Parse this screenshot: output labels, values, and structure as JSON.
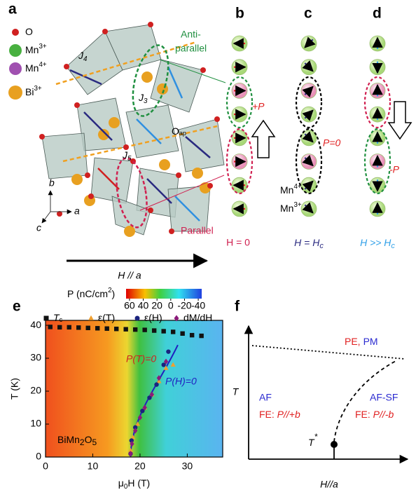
{
  "panel_a": {
    "label": "a",
    "legend": [
      {
        "base": "O"
      },
      {
        "base": "Mn",
        "sup": "3+"
      },
      {
        "base": "Mn",
        "sup": "4+"
      },
      {
        "base": "Bi",
        "sup": "3+"
      }
    ],
    "exchange": [
      {
        "base": "J",
        "sub": "4"
      },
      {
        "base": "J",
        "sub": "3"
      },
      {
        "base": "J",
        "sub": "5"
      }
    ],
    "apical": {
      "base": "O",
      "sub": "ap"
    },
    "antiparallel": [
      "Anti-",
      "parallel"
    ],
    "parallel": "Parallel",
    "axes": [
      "b",
      "a",
      "c"
    ],
    "field": "H // a"
  },
  "panel_b": {
    "label": "b",
    "polarization": "+P",
    "field": "H = 0"
  },
  "panel_c": {
    "label": "c",
    "polarization": "P=0",
    "ions": [
      {
        "base": "Mn",
        "sup": "4+"
      },
      {
        "base": "Mn",
        "sup": "3+"
      }
    ],
    "field": {
      "base": "H = H",
      "sub": "c"
    }
  },
  "panel_d": {
    "label": "d",
    "polarization": "-P",
    "field": {
      "base": "H >> H",
      "sub": "c"
    }
  },
  "panel_f": {
    "label": "f",
    "y_axis": "T",
    "x_axis": "H//a",
    "high": [
      "PE,",
      "PM"
    ],
    "left": [
      "AF",
      "FE: ",
      "P//+b"
    ],
    "right": [
      "AF-SF",
      "FE: ",
      "P//-b"
    ],
    "tstar": {
      "base": "T",
      "sup": "*"
    }
  },
  "chart_data": {
    "type": "scatter",
    "label": "e",
    "colorbar": {
      "title": {
        "base": "P (nC/cm",
        "sup": "2",
        "rest": ")"
      },
      "clim": [
        65,
        -45
      ],
      "ticks": [
        60,
        40,
        20,
        0,
        -20,
        -40
      ]
    },
    "xlabel": {
      "base": "μ",
      "sub": "0",
      "rest": "H (T)"
    },
    "ylabel": "T (K)",
    "xlim": [
      0,
      37.5
    ],
    "ylim": [
      0,
      41.5
    ],
    "xticks": [
      0,
      10,
      20,
      30
    ],
    "yticks": [
      0,
      10,
      20,
      30,
      40
    ],
    "compound": {
      "base": "BiMn",
      "sub1": "2",
      "mid": "O",
      "sub2": "5"
    },
    "annotations": [
      "P(T)=0",
      "P(H)=0"
    ],
    "series": [
      {
        "name": "T",
        "name_sub": "c",
        "marker": "square",
        "color": "#111111",
        "x": [
          1,
          3,
          5,
          7,
          9,
          11,
          13,
          15,
          17,
          19,
          21,
          23,
          25,
          27,
          29,
          31,
          33
        ],
        "values": [
          39.5,
          39.4,
          39.4,
          39.3,
          39.2,
          39.1,
          39.0,
          38.9,
          38.8,
          38.7,
          38.6,
          38.4,
          38.2,
          38.0,
          37.5,
          37.0,
          36.8
        ]
      },
      {
        "name": "ε(T)",
        "marker": "triangle",
        "color": "#f0a030",
        "x": [
          18,
          18.5,
          19.5,
          21,
          22.5,
          24,
          25.5,
          27
        ],
        "values": [
          2,
          6,
          10,
          15,
          19,
          23,
          27,
          28
        ]
      },
      {
        "name": "ε(H)",
        "marker": "circle",
        "color": "#1a237e",
        "x": [
          18,
          18.2,
          19,
          20.5,
          22,
          23.5,
          25,
          26
        ],
        "values": [
          1,
          5,
          9,
          14,
          18,
          22,
          28,
          32
        ]
      },
      {
        "name": "dM/dH",
        "marker": "diamond",
        "color": "#8b1a7a",
        "x": [
          18,
          18.3,
          19,
          20,
          21,
          22.5,
          24,
          25.5
        ],
        "values": [
          1,
          4,
          8,
          12,
          15,
          19,
          24,
          29
        ]
      }
    ]
  }
}
